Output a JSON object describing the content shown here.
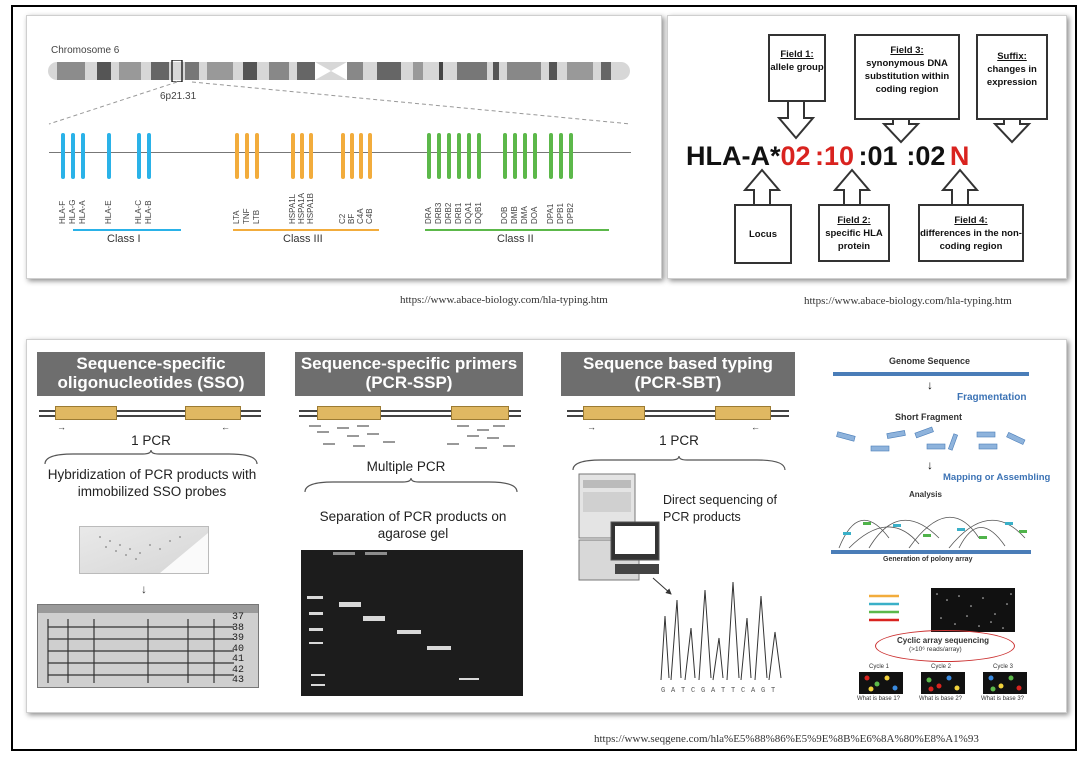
{
  "top_left": {
    "chromosome_label": "Chromosome 6",
    "band_label": "6p21.31",
    "genes_class1": [
      "HLA-F",
      "HLA-G",
      "HLA-A",
      "HLA-E",
      "HLA-C",
      "HLA-B"
    ],
    "genes_class3": [
      "LTA",
      "TNF",
      "LTB",
      "HSPA1L",
      "HSPA1A",
      "HSPA1B",
      "C2",
      "BF",
      "C4A",
      "C4B"
    ],
    "genes_class2": [
      "DRA",
      "DRB3",
      "DRB2",
      "DRB1",
      "DQA1",
      "DQB1",
      "DOB",
      "DMB",
      "DMA",
      "DOA",
      "DPA1",
      "DPB1",
      "DPB2"
    ],
    "class1_label": "Class I",
    "class3_label": "Class III",
    "class2_label": "Class II",
    "colors": {
      "class1": "#2ab2e8",
      "class3": "#f2ac3c",
      "class2": "#5cb84a"
    }
  },
  "url_top_left": "https://www.abace-biology.com/hla-typing.htm",
  "url_top_right": "https://www.abace-biology.com/hla-typing.htm",
  "url_bottom": "https://www.seqgene.com/hla%E5%88%86%E5%9E%8B%E6%8A%80%E8%A1%93",
  "nomenclature": {
    "prefix": "HLA-A*",
    "f1": "02",
    "f2": ":10",
    "f3": ":01",
    "f4": ":02",
    "suffix": "N",
    "field1_title": "Field 1:",
    "field1_text": "allele group",
    "field3_title": "Field 3:",
    "field3_text": "synonymous DNA substitution within coding region",
    "suffix_title": "Suffix:",
    "suffix_text": "changes in expression",
    "locus": "Locus",
    "field2_title": "Field 2:",
    "field2_text": "specific HLA protein",
    "field4_title": "Field 4:",
    "field4_text": "differences in the non-coding region",
    "accent_color": "#d9231f"
  },
  "methods": {
    "sso": {
      "title": "Sequence-specific oligonucleotides (SSO)",
      "pcr": "1 PCR",
      "desc": "Hybridization of PCR products with immobilized SSO probes",
      "numbers": [
        "37",
        "38",
        "39",
        "40",
        "41",
        "42",
        "43"
      ]
    },
    "ssp": {
      "title": "Sequence-specific primers (PCR-SSP)",
      "pcr": "Multiple PCR",
      "desc": "Separation of PCR products on agarose gel"
    },
    "sbt": {
      "title": "Sequence based typing (PCR-SBT)",
      "pcr": "1 PCR",
      "desc": "Direct sequencing of PCR products"
    },
    "ngs": {
      "genome": "Genome Sequence",
      "fragmentation": "Fragmentation",
      "short_fragment": "Short Fragment",
      "mapping": "Mapping or Assembling",
      "analysis": "Analysis",
      "polony": "Generation of polony array",
      "cyclic": "Cyclic array sequencing",
      "cyclic_sub": "(>10⁶ reads/array)",
      "cycles": [
        "Cycle 1",
        "Cycle 2",
        "Cycle 3"
      ],
      "questions": [
        "What is base 1?",
        "What is base 2?",
        "What is base 3?"
      ]
    }
  }
}
